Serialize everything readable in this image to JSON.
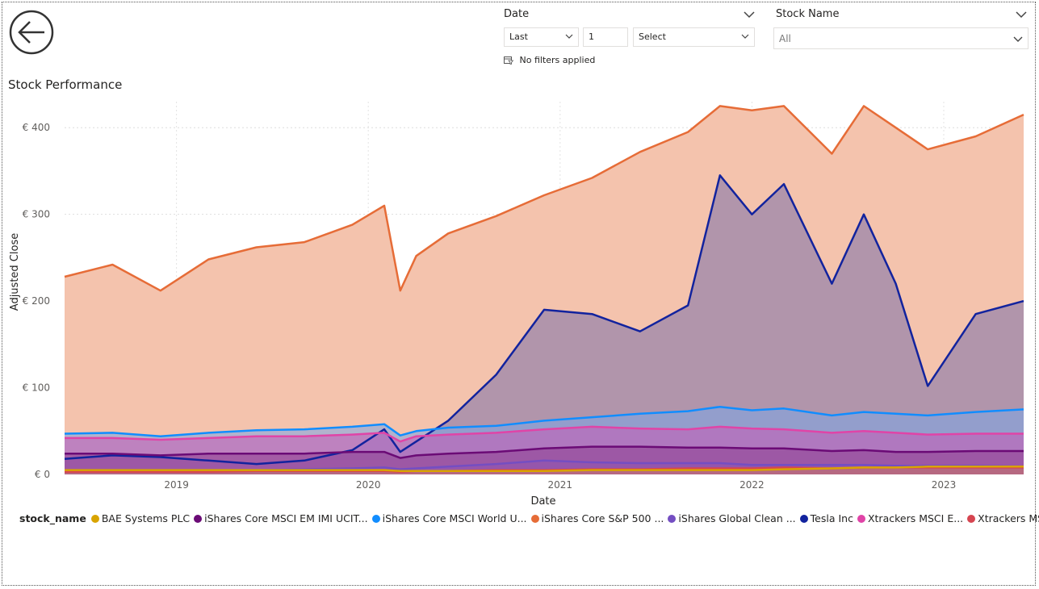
{
  "slicers": {
    "date": {
      "title": "Date",
      "mode": "Last",
      "count": "1",
      "unit_placeholder": "Select",
      "status": "No filters applied"
    },
    "stock": {
      "title": "Stock Name",
      "selected": "All"
    }
  },
  "icons": {
    "back": "back-arrow-icon",
    "filter_status": "calendar-filter-icon",
    "chevron": "chevron-down-icon"
  },
  "legend": {
    "title": "stock_name",
    "items": [
      {
        "label": "BAE Systems PLC",
        "color": "#d9a400"
      },
      {
        "label": "iShares Core MSCI EM IMI UCIT...",
        "color": "#6b0b76"
      },
      {
        "label": "iShares Core MSCI World U...",
        "color": "#118dff"
      },
      {
        "label": "iShares Core S&P 500 ...",
        "color": "#e66c37"
      },
      {
        "label": "iShares Global Clean ...",
        "color": "#744ec2"
      },
      {
        "label": "Tesla Inc",
        "color": "#12239e"
      },
      {
        "label": "Xtrackers MSCI E...",
        "color": "#e044a7"
      },
      {
        "label": "Xtrackers MSCI US...",
        "color": "#d64550"
      }
    ]
  },
  "chart_data": {
    "type": "area",
    "title": "Stock Performance",
    "xlabel": "Date",
    "ylabel": "Adjusted Close",
    "x_ticks": [
      "2019",
      "2020",
      "2021",
      "2022",
      "2023"
    ],
    "y_ticks": [
      "€ 0",
      "€ 100",
      "€ 200",
      "€ 300",
      "€ 400"
    ],
    "xlim": [
      "2018-06",
      "2023-06"
    ],
    "ylim": [
      0,
      430
    ],
    "grid": true,
    "legend_position": "bottom",
    "x": [
      "2018-06",
      "2018-09",
      "2018-12",
      "2019-03",
      "2019-06",
      "2019-09",
      "2019-12",
      "2020-02",
      "2020-03",
      "2020-04",
      "2020-06",
      "2020-09",
      "2020-12",
      "2021-03",
      "2021-06",
      "2021-09",
      "2021-11",
      "2022-01",
      "2022-03",
      "2022-06",
      "2022-08",
      "2022-10",
      "2022-12",
      "2023-03",
      "2023-06"
    ],
    "series": [
      {
        "name": "iShares Core S&P 500 ...",
        "color": "#e66c37",
        "fill": "#f4c3ad",
        "values": [
          228,
          242,
          212,
          248,
          262,
          268,
          288,
          310,
          212,
          252,
          278,
          298,
          322,
          342,
          372,
          395,
          425,
          420,
          425,
          370,
          425,
          400,
          375,
          390,
          415
        ]
      },
      {
        "name": "Tesla Inc",
        "color": "#12239e",
        "fill": "#7a6fa9",
        "values": [
          18,
          22,
          20,
          16,
          12,
          16,
          28,
          52,
          26,
          38,
          62,
          115,
          190,
          185,
          165,
          195,
          345,
          300,
          335,
          220,
          300,
          220,
          102,
          185,
          200
        ]
      },
      {
        "name": "iShares Core MSCI World U...",
        "color": "#118dff",
        "fill": "#7aa6e8",
        "values": [
          47,
          48,
          44,
          48,
          51,
          52,
          55,
          58,
          45,
          50,
          54,
          56,
          62,
          66,
          70,
          73,
          78,
          74,
          76,
          68,
          72,
          70,
          68,
          72,
          75
        ]
      },
      {
        "name": "Xtrackers MSCI E...",
        "color": "#e044a7",
        "fill": "#c85ab5",
        "values": [
          42,
          42,
          40,
          42,
          44,
          44,
          46,
          48,
          38,
          44,
          46,
          48,
          52,
          55,
          53,
          52,
          55,
          53,
          52,
          48,
          50,
          48,
          46,
          47,
          47
        ]
      },
      {
        "name": "iShares Core MSCI EM IMI UCIT...",
        "color": "#6b0b76",
        "fill": "#8e3e8f",
        "values": [
          24,
          24,
          22,
          24,
          24,
          24,
          26,
          26,
          19,
          22,
          24,
          26,
          30,
          32,
          32,
          31,
          31,
          30,
          30,
          27,
          28,
          26,
          26,
          27,
          27
        ]
      },
      {
        "name": "iShares Global Clean ...",
        "color": "#744ec2",
        "fill": "#8e56b3",
        "values": [
          5,
          5,
          5,
          5,
          5,
          6,
          7,
          8,
          6,
          7,
          9,
          12,
          16,
          14,
          13,
          13,
          13,
          11,
          11,
          11,
          11,
          10,
          10,
          10,
          9
        ]
      },
      {
        "name": "Xtrackers MSCI US...",
        "color": "#d64550",
        "fill": "#c9556e",
        "values": [
          3,
          3,
          3,
          3,
          4,
          4,
          4,
          4,
          3,
          4,
          4,
          5,
          5,
          6,
          6,
          7,
          7,
          7,
          8,
          7,
          8,
          8,
          8,
          8,
          8
        ]
      },
      {
        "name": "BAE Systems PLC",
        "color": "#d9a400",
        "fill": "#b97a7a",
        "values": [
          5,
          5,
          5,
          5,
          5,
          5,
          5,
          5,
          4,
          4,
          4,
          4,
          4,
          5,
          5,
          5,
          5,
          5,
          6,
          7,
          8,
          8,
          9,
          9,
          9
        ]
      }
    ]
  }
}
